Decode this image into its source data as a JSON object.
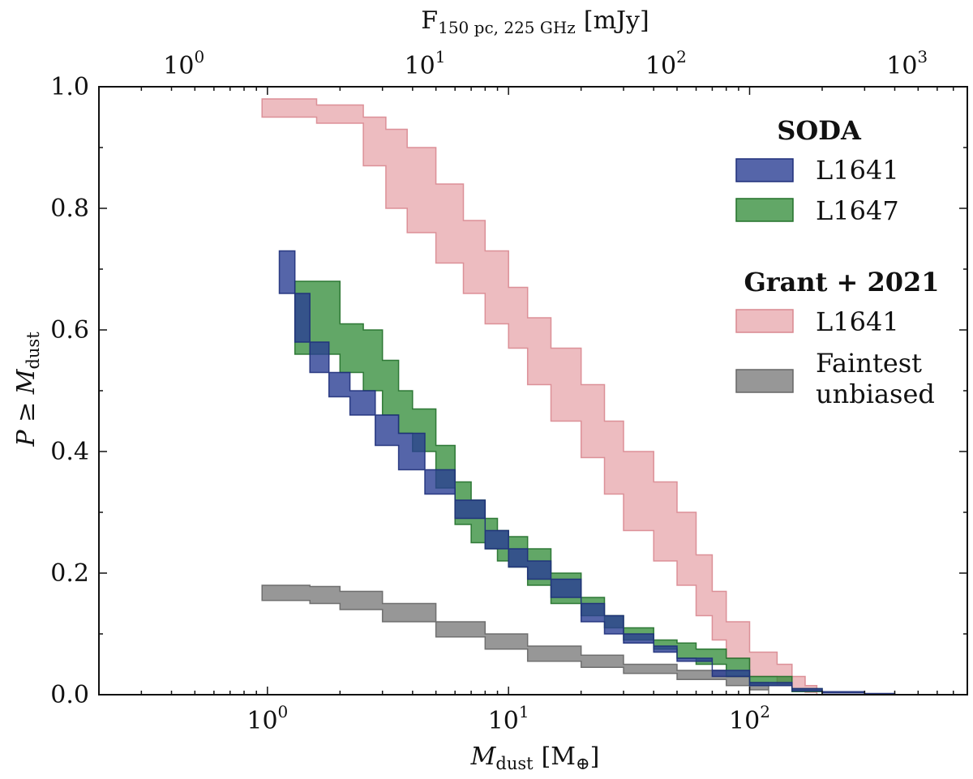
{
  "chart_data": {
    "type": "area",
    "xscale": "log",
    "xlim": [
      0.2,
      800
    ],
    "ylim": [
      0.0,
      1.0
    ],
    "xlabel": {
      "main": "M",
      "sub": "dust",
      "tail": "[M",
      "tailsub": "⊕",
      "close": "]"
    },
    "ylabel": {
      "main": "P ≥ M",
      "sub": "dust"
    },
    "top_axis": {
      "label": {
        "main": "F",
        "sub": "150 pc, 225 GHz",
        "tail": "[mJy]"
      },
      "ticks": [
        {
          "base": "10",
          "exp": "0",
          "pos": 0.45
        },
        {
          "base": "10",
          "exp": "1",
          "pos": 4.5
        },
        {
          "base": "10",
          "exp": "2",
          "pos": 45
        },
        {
          "base": "10",
          "exp": "3",
          "pos": 450
        }
      ]
    },
    "x_ticks": [
      {
        "base": "10",
        "exp": "0",
        "value": 1
      },
      {
        "base": "10",
        "exp": "1",
        "value": 10
      },
      {
        "base": "10",
        "exp": "2",
        "value": 100
      }
    ],
    "y_ticks": [
      "0.0",
      "0.2",
      "0.4",
      "0.6",
      "0.8",
      "1.0"
    ],
    "y_tick_values": [
      0.0,
      0.2,
      0.4,
      0.6,
      0.8,
      1.0
    ],
    "legend": {
      "groups": [
        {
          "title": "SODA",
          "entries": [
            {
              "label": "L1641",
              "series": "soda_l1641"
            },
            {
              "label": "L1647",
              "series": "soda_l1647"
            }
          ]
        },
        {
          "title": "Grant + 2021",
          "entries": [
            {
              "label": "L1641",
              "series": "grant_l1641"
            },
            {
              "label_lines": [
                "Faintest",
                "unbiased"
              ],
              "series": "faintest"
            }
          ]
        }
      ]
    },
    "series": [
      {
        "id": "grant_l1641",
        "name": "Grant + 2021 L1641",
        "fill": "#e8a9ae",
        "edge": "#d98890",
        "opacity": 0.78,
        "x": [
          0.95,
          1.6,
          2.5,
          3.1,
          3.8,
          5.0,
          6.5,
          8.0,
          10.0,
          12.0,
          15.0,
          20.0,
          25.0,
          30.0,
          40.0,
          50.0,
          60.0,
          70.0,
          80.0,
          100.0,
          130.0,
          150.0,
          170.0,
          190.0
        ],
        "lower": [
          0.95,
          0.94,
          0.87,
          0.8,
          0.76,
          0.71,
          0.66,
          0.61,
          0.57,
          0.51,
          0.45,
          0.39,
          0.33,
          0.27,
          0.22,
          0.18,
          0.13,
          0.09,
          0.06,
          0.03,
          0.015,
          0.008,
          0.004,
          0.0
        ],
        "upper": [
          0.98,
          0.97,
          0.95,
          0.93,
          0.9,
          0.84,
          0.78,
          0.73,
          0.67,
          0.62,
          0.57,
          0.51,
          0.45,
          0.4,
          0.35,
          0.3,
          0.23,
          0.17,
          0.12,
          0.07,
          0.05,
          0.03,
          0.015,
          0.0
        ]
      },
      {
        "id": "faintest",
        "name": "Faintest unbiased",
        "fill": "#8c8c8c",
        "edge": "#666666",
        "opacity": 0.9,
        "x": [
          0.95,
          1.5,
          2.0,
          3.0,
          5.0,
          8.0,
          12.0,
          20.0,
          30.0,
          50.0,
          80.0,
          100.0,
          120.0
        ],
        "lower": [
          0.155,
          0.15,
          0.14,
          0.12,
          0.095,
          0.075,
          0.055,
          0.045,
          0.035,
          0.025,
          0.015,
          0.008,
          0.0
        ],
        "upper": [
          0.18,
          0.178,
          0.17,
          0.15,
          0.12,
          0.1,
          0.08,
          0.065,
          0.05,
          0.04,
          0.03,
          0.02,
          0.008
        ]
      },
      {
        "id": "soda_l1647",
        "name": "SODA L1647",
        "fill": "#2e8a34",
        "edge": "#22702a",
        "opacity": 0.75,
        "x": [
          1.3,
          1.6,
          2.0,
          2.5,
          3.0,
          3.5,
          4.0,
          5.0,
          6.0,
          7.0,
          8.0,
          9.0,
          10.0,
          12.0,
          15.0,
          20.0,
          25.0,
          30.0,
          40.0,
          50.0,
          60.0,
          80.0,
          100.0,
          150.0,
          200.0
        ],
        "lower": [
          0.56,
          0.56,
          0.53,
          0.5,
          0.46,
          0.43,
          0.4,
          0.34,
          0.28,
          0.25,
          0.24,
          0.22,
          0.21,
          0.18,
          0.15,
          0.13,
          0.11,
          0.09,
          0.075,
          0.06,
          0.05,
          0.03,
          0.015,
          0.005,
          0.0
        ],
        "upper": [
          0.68,
          0.68,
          0.61,
          0.6,
          0.55,
          0.5,
          0.47,
          0.41,
          0.35,
          0.32,
          0.29,
          0.27,
          0.26,
          0.24,
          0.2,
          0.16,
          0.13,
          0.11,
          0.09,
          0.085,
          0.075,
          0.06,
          0.03,
          0.01,
          0.0
        ]
      },
      {
        "id": "soda_l1641",
        "name": "SODA L1641",
        "fill": "#2a3f94",
        "edge": "#1e2f7a",
        "opacity": 0.8,
        "x": [
          1.12,
          1.2,
          1.3,
          1.5,
          1.8,
          2.2,
          2.8,
          3.5,
          4.5,
          6.0,
          8.0,
          10.0,
          12.0,
          15.0,
          20.0,
          25.0,
          30.0,
          40.0,
          50.0,
          70.0,
          100.0,
          150.0,
          200.0,
          300.0,
          400.0
        ],
        "lower": [
          0.66,
          0.66,
          0.58,
          0.53,
          0.49,
          0.46,
          0.41,
          0.37,
          0.33,
          0.29,
          0.24,
          0.21,
          0.19,
          0.16,
          0.12,
          0.1,
          0.085,
          0.07,
          0.055,
          0.03,
          0.015,
          0.006,
          0.003,
          0.001,
          0.0
        ],
        "upper": [
          0.73,
          0.73,
          0.66,
          0.58,
          0.53,
          0.5,
          0.46,
          0.43,
          0.37,
          0.32,
          0.27,
          0.24,
          0.22,
          0.19,
          0.15,
          0.13,
          0.1,
          0.08,
          0.06,
          0.04,
          0.02,
          0.01,
          0.005,
          0.002,
          0.0
        ]
      }
    ]
  }
}
